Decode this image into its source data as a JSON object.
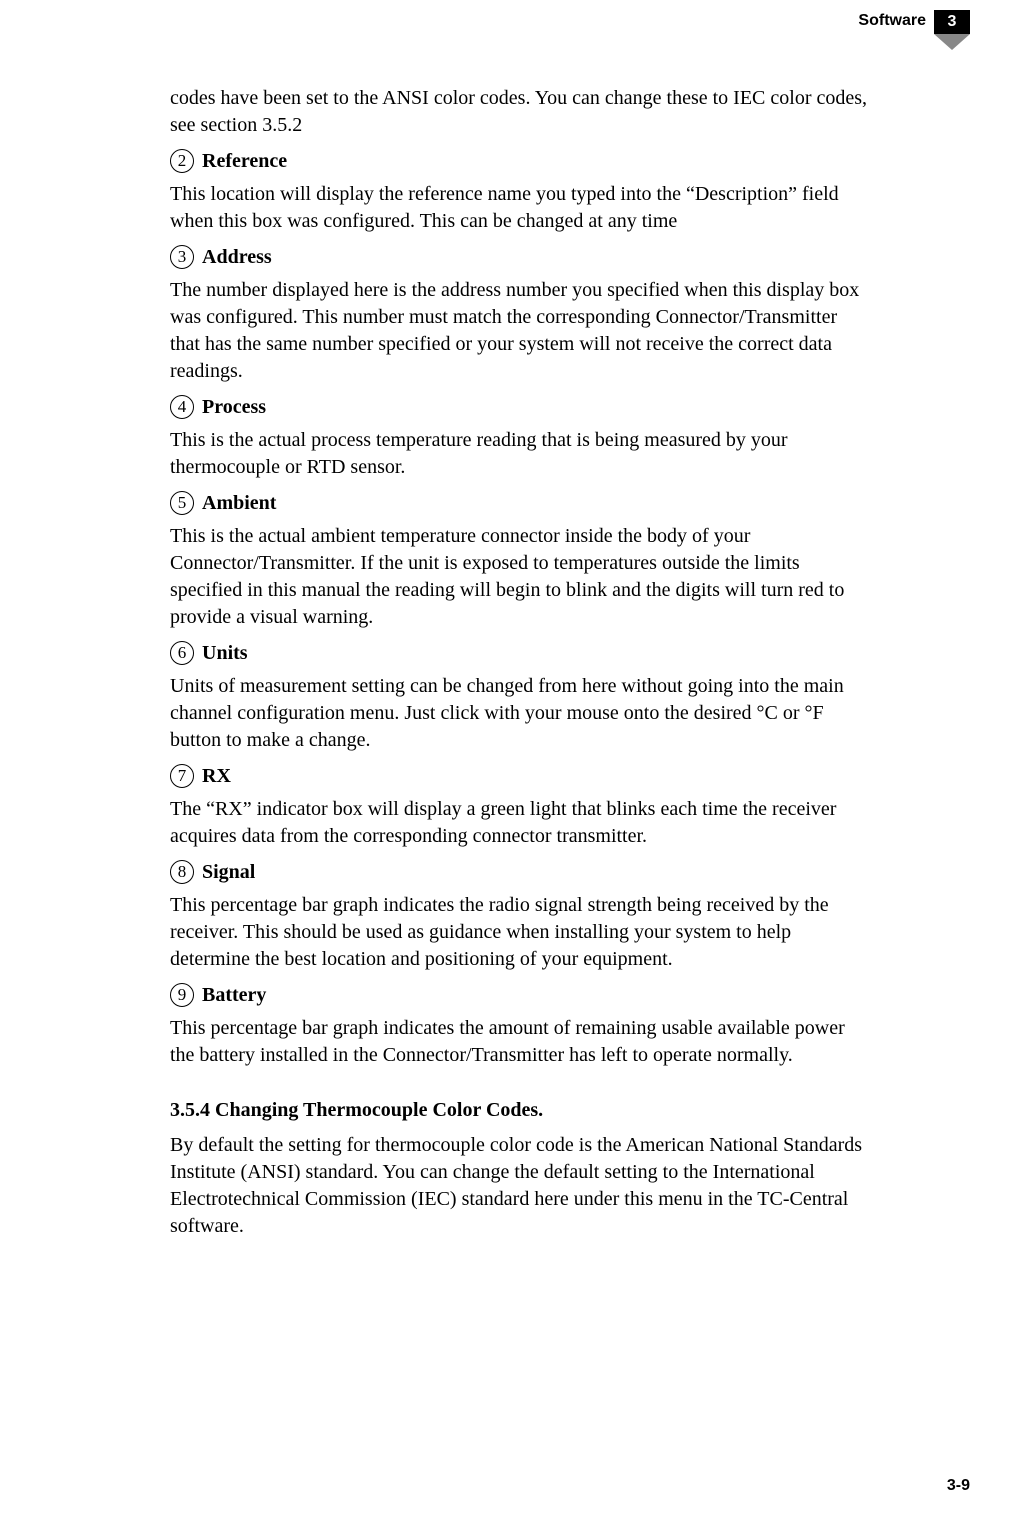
{
  "header": {
    "label": "Software",
    "chapter": "3"
  },
  "intro_para": "codes have been set to the ANSI color codes. You can change these to IEC color codes, see section 3.5.2",
  "sections": [
    {
      "num": "2",
      "title": "Reference",
      "body": "This location will display the reference name you typed into the “Description” field when this box was configured. This can be changed at any time"
    },
    {
      "num": "3",
      "title": "Address",
      "body": "The number displayed here is the address number you specified when this display box was configured. This number must match the corresponding Connector/Transmitter that has the same number specified or your system will not receive the correct data readings."
    },
    {
      "num": "4",
      "title": "Process",
      "body": "This is the actual process temperature reading that is being measured by your thermocouple or RTD sensor."
    },
    {
      "num": "5",
      "title": "Ambient",
      "body": "This is the actual ambient temperature connector inside the body of your Connector/Transmitter. If the unit is exposed to temperatures outside the limits specified in this manual the reading will begin to blink and the digits will turn red to provide a visual warning."
    },
    {
      "num": "6",
      "title": "Units",
      "body": "Units of measurement setting can be changed from here without going into the main channel configuration menu. Just click with your mouse onto the desired °C or °F button to make a change."
    },
    {
      "num": "7",
      "title": "RX",
      "body": "The “RX” indicator box will display a green light that blinks each time the receiver acquires data from the corresponding connector transmitter."
    },
    {
      "num": "8",
      "title": "Signal",
      "body": "This percentage bar graph indicates the radio signal strength being received by the receiver. This should be used as guidance when installing your system to help determine the best location and positioning of your equipment."
    },
    {
      "num": "9",
      "title": "Battery",
      "body": "This percentage bar graph indicates the amount of remaining usable available power the battery installed in the Connector/Transmitter has left to operate normally."
    }
  ],
  "subsection": {
    "title": "3.5.4 Changing Thermocouple Color Codes.",
    "body": "By default the setting for thermocouple color code is the American National Standards Institute (ANSI) standard. You can change the default setting to the International Electrotechnical Commission (IEC) standard here under this menu in the TC-Central software."
  },
  "page_number": "3-9"
}
